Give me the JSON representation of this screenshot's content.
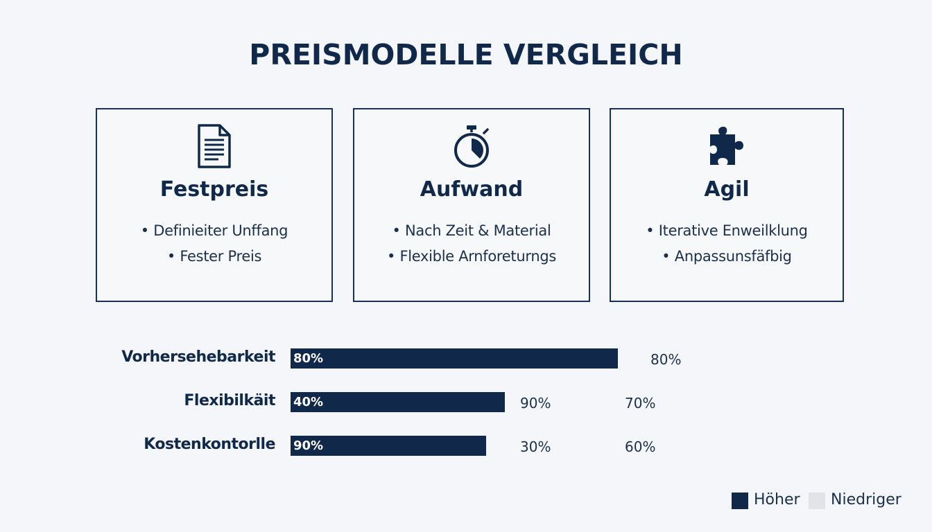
{
  "header": {
    "title": "PREISMODELLE VERGLEICH"
  },
  "cards": [
    {
      "icon": "document-icon",
      "title": "Festpreis",
      "features": [
        "Definieiter Unffang",
        "Fester Preis"
      ]
    },
    {
      "icon": "stopwatch-icon",
      "title": "Aufwand",
      "features": [
        "Nach Zeit & Material",
        "Flexible Arnforeturngs"
      ]
    },
    {
      "icon": "puzzle-icon",
      "title": "Agil",
      "features": [
        "Iterative Enweilklung",
        "Anpassunsfäfbig"
      ]
    }
  ],
  "colors": {
    "primary": "#10294b",
    "secondary": "#e1e3e6",
    "background": "#f4f6f9"
  },
  "chart_data": {
    "type": "bar",
    "categories": [
      "Vorhersehebarkeit",
      "Flexibilkäit",
      "Kostenkontorlle"
    ],
    "values": [
      80,
      40,
      90
    ],
    "bar_labels": [
      "80%",
      "40%",
      "90%"
    ],
    "extra_values": [
      [
        "80%"
      ],
      [
        "90%",
        "70%"
      ],
      [
        "30%",
        "60%"
      ]
    ],
    "legend": [
      {
        "label": "Höher",
        "color": "#10294b"
      },
      {
        "label": "Niedriger",
        "color": "#e1e3e6"
      }
    ],
    "legend_position": "bottom-right",
    "grid": false
  }
}
